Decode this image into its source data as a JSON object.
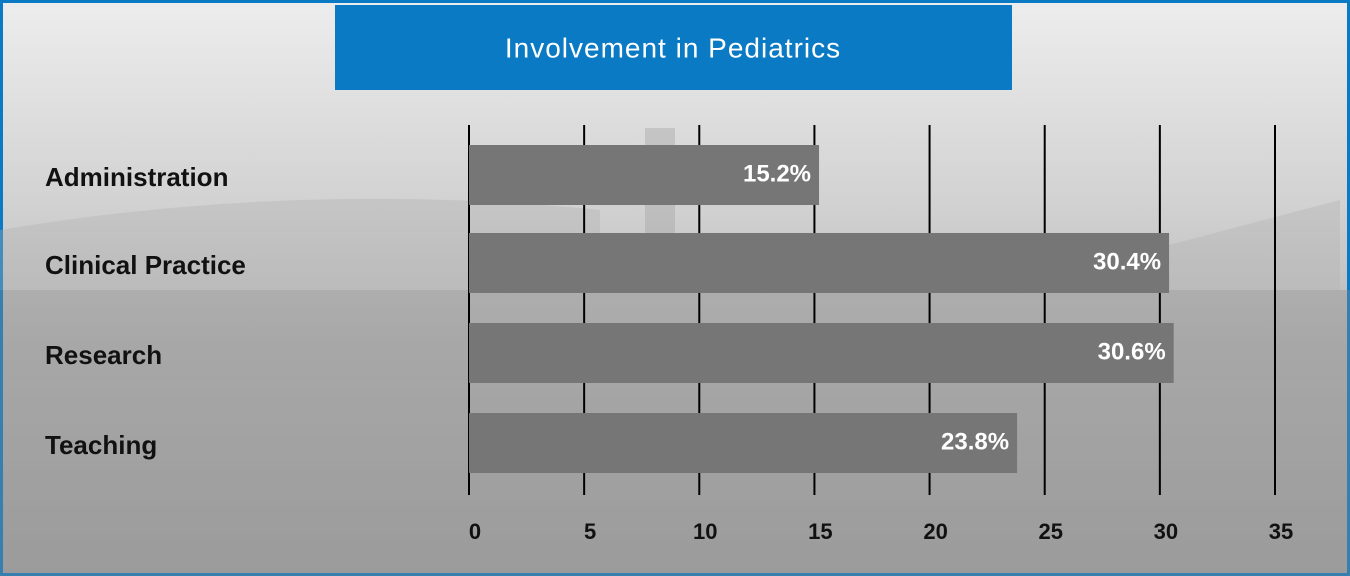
{
  "chart_data": {
    "type": "bar",
    "title": "Involvement in Pediatrics",
    "categories": [
      "Administration",
      "Clinical Practice",
      "Research",
      "Teaching"
    ],
    "values": [
      15.2,
      30.4,
      30.6,
      23.8
    ],
    "value_labels": [
      "15.2%",
      "30.4%",
      "30.6%",
      "23.8%"
    ],
    "color": "#767676",
    "xlim": [
      0,
      35
    ],
    "xticks": [
      0,
      5,
      10,
      15,
      20,
      25,
      30,
      35
    ],
    "grid": true
  }
}
